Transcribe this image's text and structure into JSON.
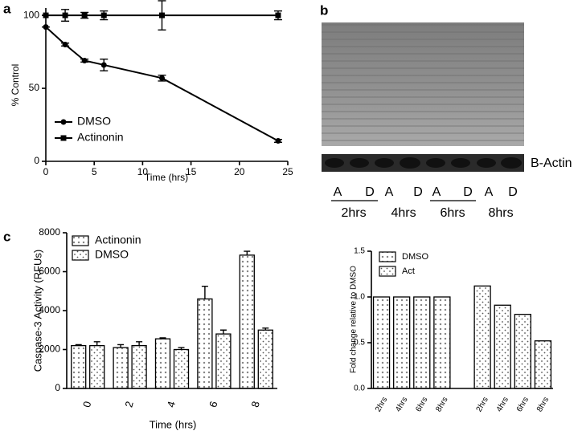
{
  "chart_data": [
    {
      "type": "line",
      "panel_label": "a",
      "xlabel": "Time (hrs)",
      "ylabel": "% Control",
      "xlim": [
        0,
        25
      ],
      "xticks": [
        0,
        5,
        10,
        15,
        20,
        25
      ],
      "ylim": [
        0,
        105
      ],
      "yticks": [
        0,
        50,
        100
      ],
      "legend": "lower left",
      "series": [
        {
          "name": "DMSO",
          "color": "#000000",
          "marker": "circle",
          "x": [
            0,
            2,
            4,
            6,
            12,
            24
          ],
          "values": [
            92,
            80,
            69,
            66,
            57,
            14
          ],
          "errors": [
            0,
            1,
            1,
            4,
            2,
            1
          ]
        },
        {
          "name": "Actinonin",
          "color": "#000000",
          "marker": "square",
          "x": [
            0,
            2,
            4,
            6,
            12,
            24
          ],
          "values": [
            100,
            100,
            100,
            100,
            100,
            100
          ],
          "errors": [
            0,
            4,
            2,
            3,
            10,
            3
          ]
        }
      ]
    },
    {
      "type": "bar",
      "panel_label": "c",
      "xlabel": "Time (hrs)",
      "ylabel": "Caspase-3 Activity (RFUs)",
      "categories": [
        "0",
        "2",
        "4",
        "6",
        "8"
      ],
      "ylim": [
        0,
        8000
      ],
      "yticks": [
        0,
        2000,
        4000,
        6000,
        8000
      ],
      "legend": "upper left",
      "series": [
        {
          "name": "Actinonin",
          "color": "#000000",
          "pattern": "cross",
          "values": [
            2200,
            2100,
            2550,
            4600,
            6850
          ],
          "errors": [
            50,
            150,
            50,
            650,
            200
          ]
        },
        {
          "name": "DMSO",
          "color": "#000000",
          "pattern": "dots",
          "values": [
            2200,
            2200,
            2000,
            2800,
            3000
          ],
          "errors": [
            200,
            200,
            100,
            200,
            100
          ]
        }
      ]
    },
    {
      "type": "bar",
      "ylabel": "Fold change relative to DMSO",
      "categories": [
        "2hrs",
        "4hrs",
        "6hrs",
        "8hrs",
        "2hrs",
        "4hrs",
        "6hrs",
        "8hrs"
      ],
      "ylim": [
        0,
        1.5
      ],
      "yticks": [
        {
          "value": 0,
          "label": "0.0"
        },
        {
          "value": 0.5,
          "label": "0.5"
        },
        {
          "value": 1,
          "label": "1.0"
        },
        {
          "value": 1.5,
          "label": "1.5"
        }
      ],
      "legend": "upper left",
      "series": [
        {
          "name": "DMSO",
          "color": "#000000",
          "pattern": "cross",
          "values": [
            1.0,
            1.0,
            1.0,
            1.0,
            null,
            null,
            null,
            null
          ]
        },
        {
          "name": "Act",
          "color": "#000000",
          "pattern": "dots",
          "values": [
            null,
            null,
            null,
            null,
            1.12,
            0.91,
            0.81,
            0.52
          ]
        }
      ]
    }
  ],
  "blot": {
    "panel_label": "b",
    "band_label": "B-Actin",
    "lanes": [
      "A",
      "D",
      "A",
      "D",
      "A",
      "D",
      "A",
      "D"
    ],
    "times": [
      "2hrs",
      "4hrs",
      "6hrs",
      "8hrs"
    ]
  }
}
